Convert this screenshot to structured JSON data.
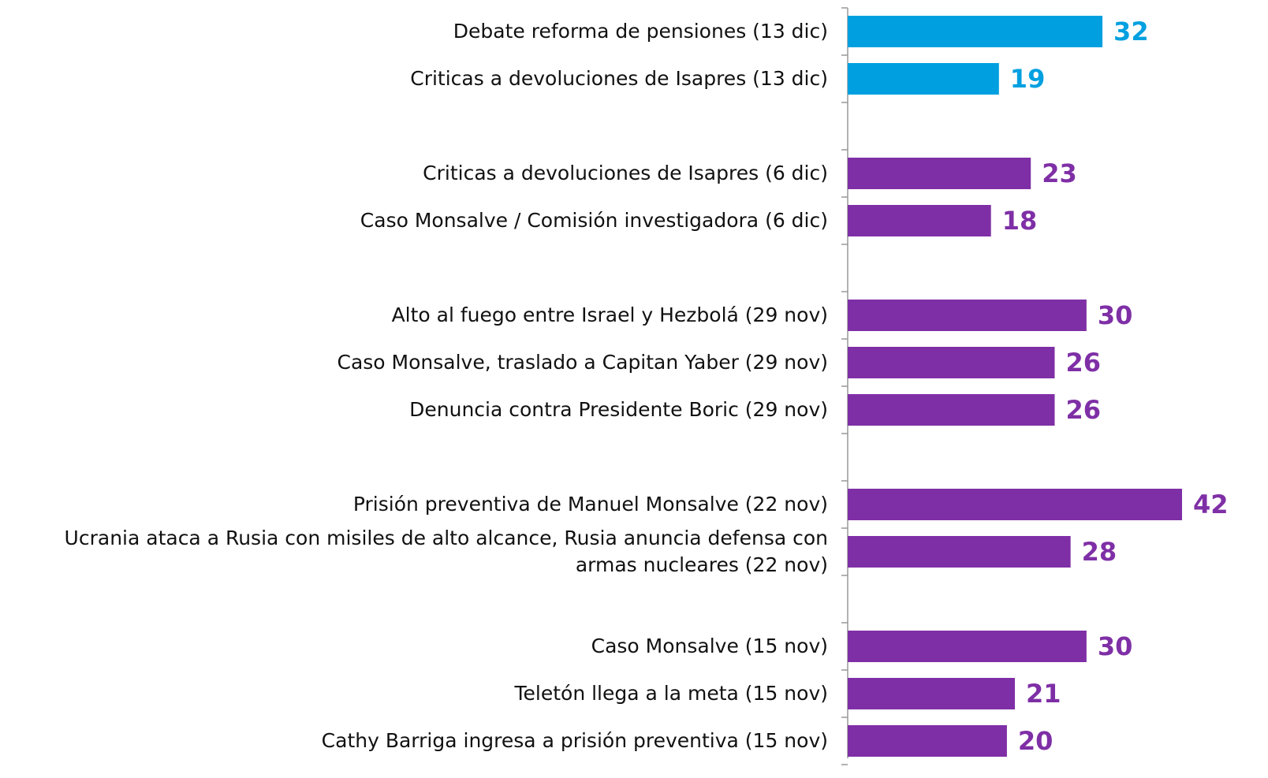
{
  "chart_data": {
    "type": "bar",
    "orientation": "horizontal",
    "categories": [
      "Debate reforma de pensiones (13 dic)",
      "Criticas a devoluciones de Isapres (13 dic)",
      null,
      "Criticas a devoluciones de Isapres (6 dic)",
      "Caso Monsalve / Comisión investigadora (6 dic)",
      null,
      "Alto al fuego entre Israel y Hezbolá (29 nov)",
      "Caso Monsalve, traslado a Capitan Yaber (29 nov)",
      "Denuncia contra Presidente Boric (29 nov)",
      null,
      "Prisión preventiva de Manuel Monsalve (22 nov)",
      "Ucrania ataca a Rusia con misiles de alto alcance, Rusia anuncia defensa con armas nucleares (22 nov)",
      null,
      "Caso Monsalve (15 nov)",
      "Teletón llega a la meta (15 nov)",
      "Cathy Barriga ingresa a prisión preventiva (15 nov)"
    ],
    "values": [
      32,
      19,
      null,
      23,
      18,
      null,
      30,
      26,
      26,
      null,
      42,
      28,
      null,
      30,
      21,
      20
    ],
    "colors": [
      "#00a0e0",
      "#00a0e0",
      null,
      "#7f2fa6",
      "#7f2fa6",
      null,
      "#7f2fa6",
      "#7f2fa6",
      "#7f2fa6",
      null,
      "#7f2fa6",
      "#7f2fa6",
      null,
      "#7f2fa6",
      "#7f2fa6",
      "#7f2fa6"
    ],
    "xlim": [
      0,
      42
    ]
  }
}
